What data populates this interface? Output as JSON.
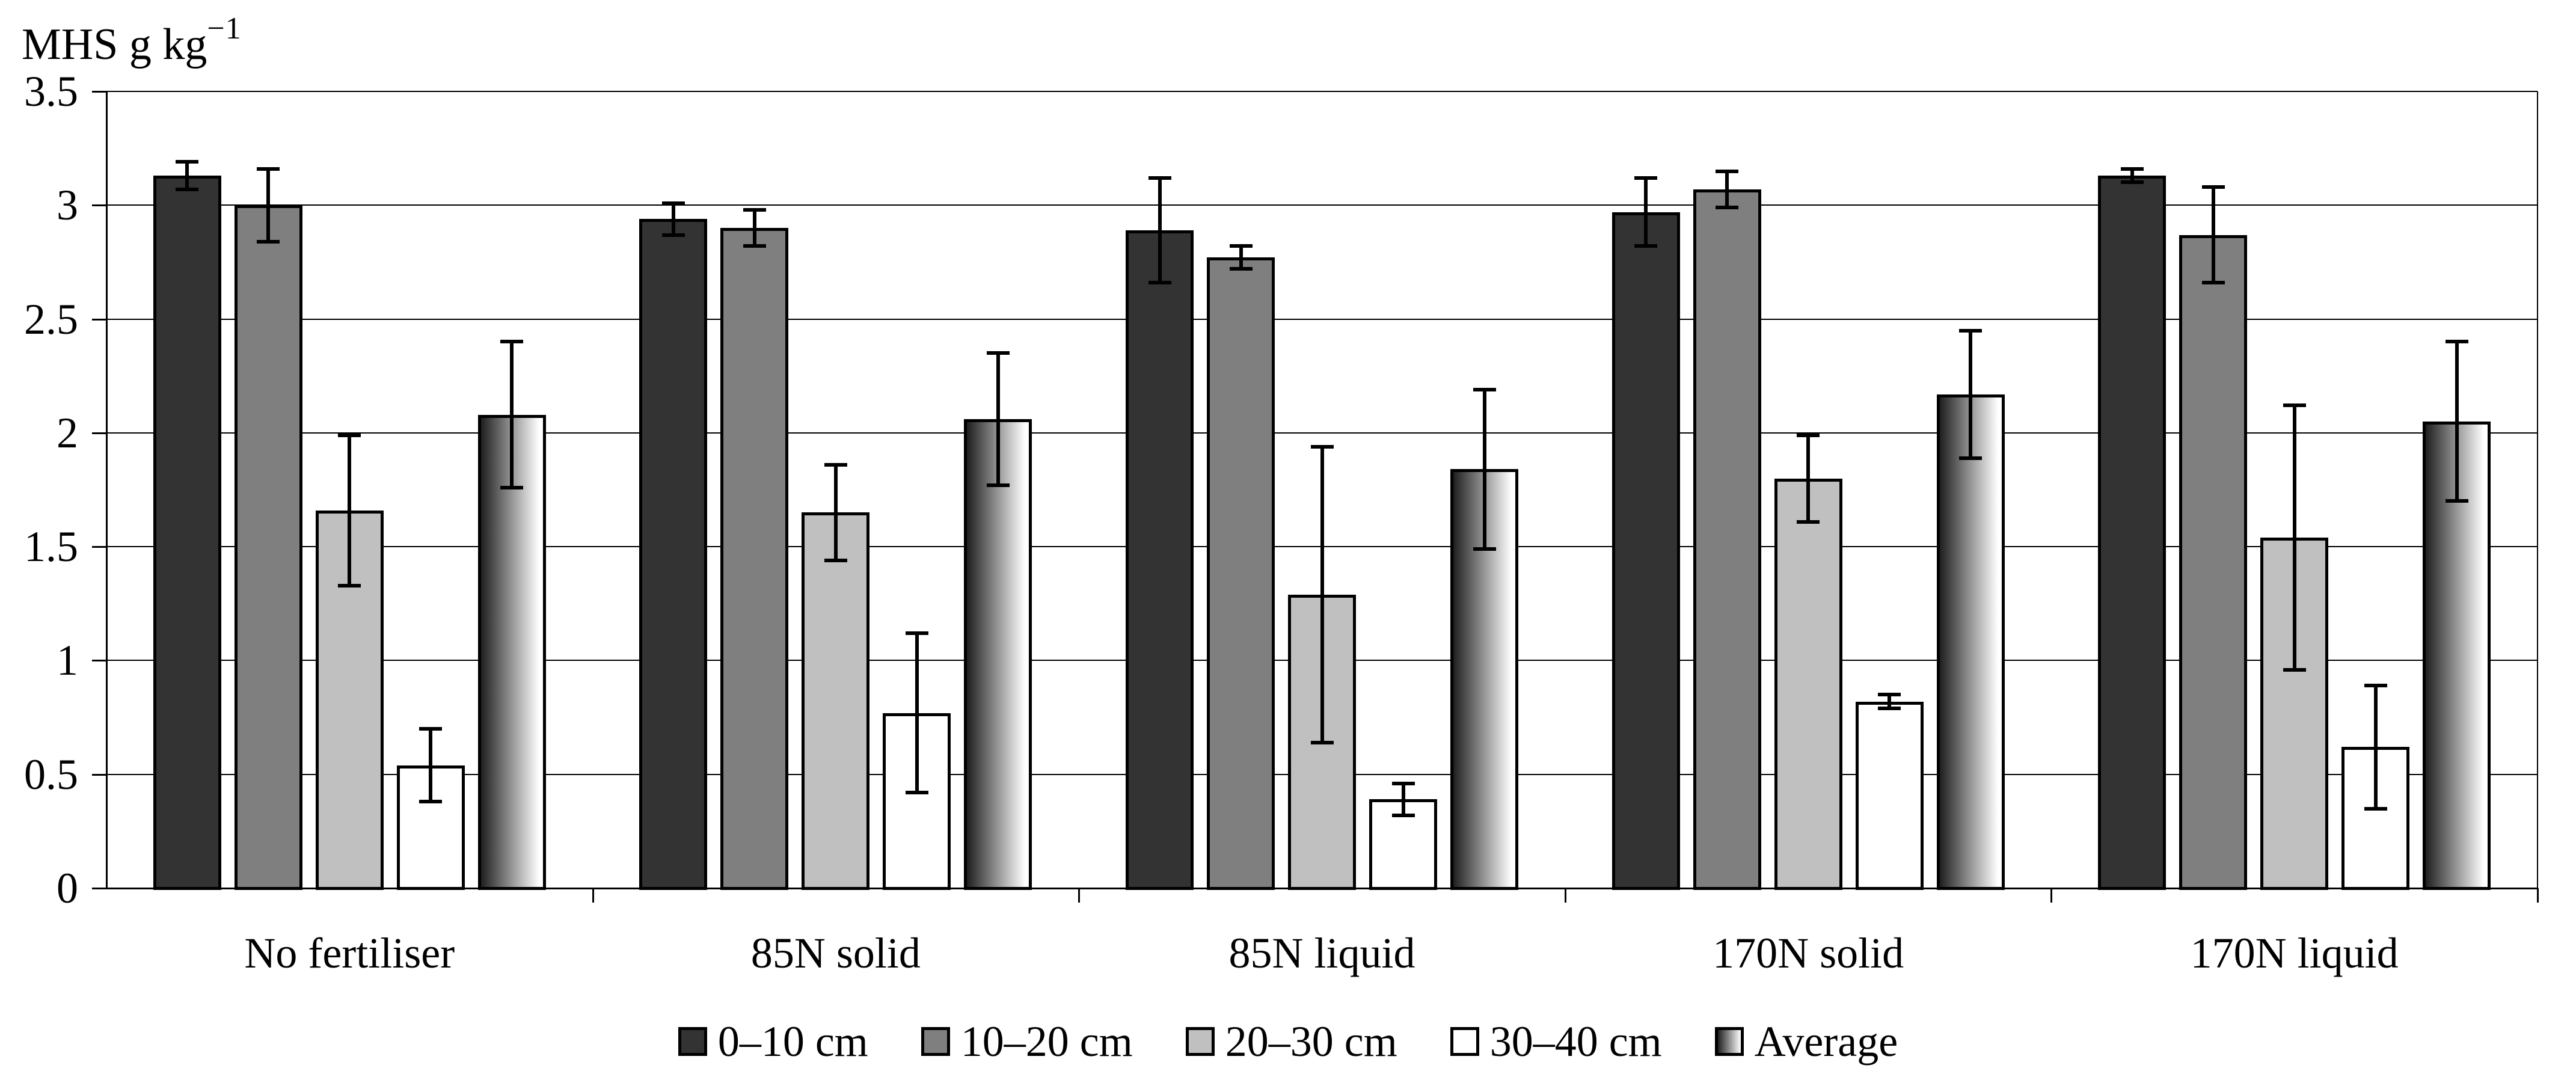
{
  "title": {
    "main": "MHS g kg",
    "superscript": "−1"
  },
  "chart_data": {
    "type": "bar",
    "title": "MHS g kg⁻¹",
    "ylabel": "MHS g kg⁻¹",
    "xlabel": "",
    "ylim": [
      0,
      3.5
    ],
    "ytick_step": 0.5,
    "ytick_labels": [
      "0",
      "0.5",
      "1",
      "1.5",
      "2",
      "2.5",
      "3",
      "3.5"
    ],
    "grid": true,
    "error_bars": true,
    "legend_position": "bottom",
    "categories": [
      "No fertiliser",
      "85N solid",
      "85N liquid",
      "170N solid",
      "170N liquid"
    ],
    "series": [
      {
        "name": "0–10 cm",
        "fill": "#333333",
        "values": [
          3.13,
          2.94,
          2.89,
          2.97,
          3.13
        ],
        "errors": [
          0.06,
          0.07,
          0.23,
          0.15,
          0.03
        ]
      },
      {
        "name": "10–20 cm",
        "fill": "#7f7f7f",
        "values": [
          3.0,
          2.9,
          2.77,
          3.07,
          2.87
        ],
        "errors": [
          0.16,
          0.08,
          0.05,
          0.08,
          0.21
        ]
      },
      {
        "name": "20–30 cm",
        "fill": "#c0c0c0",
        "values": [
          1.66,
          1.65,
          1.29,
          1.8,
          1.54
        ],
        "errors": [
          0.33,
          0.21,
          0.65,
          0.19,
          0.58
        ]
      },
      {
        "name": "30–40 cm",
        "fill": "#ffffff",
        "values": [
          0.54,
          0.77,
          0.39,
          0.82,
          0.62
        ],
        "errors": [
          0.16,
          0.35,
          0.07,
          0.03,
          0.27
        ]
      },
      {
        "name": "Average",
        "fill": "gradient",
        "gradient": [
          "#1f1f1f",
          "#ffffff"
        ],
        "values": [
          2.08,
          2.06,
          1.84,
          2.17,
          2.05
        ],
        "errors": [
          0.32,
          0.29,
          0.35,
          0.28,
          0.35
        ]
      }
    ]
  }
}
